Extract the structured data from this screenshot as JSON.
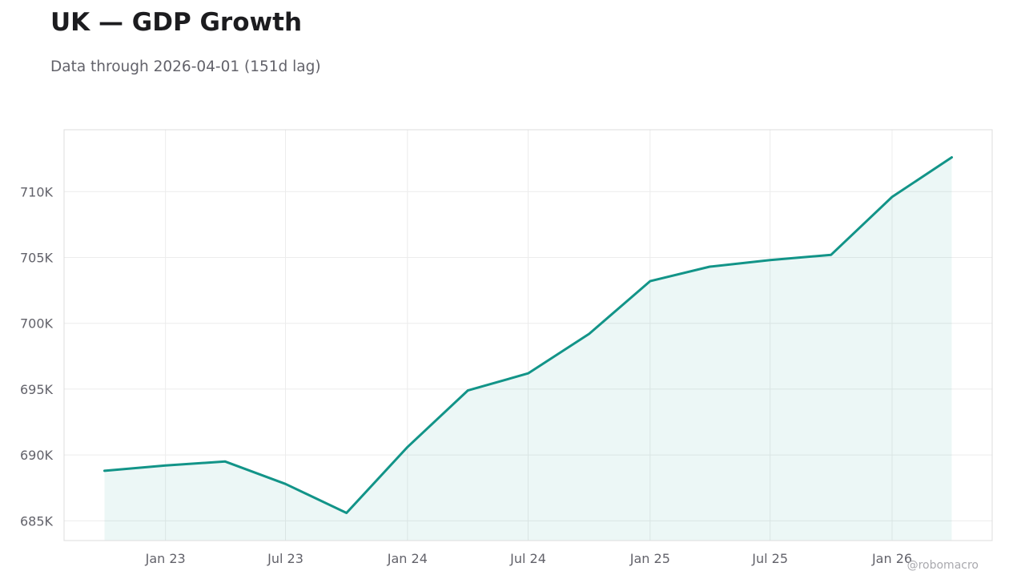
{
  "header": {
    "title": "UK — GDP Growth",
    "subtitle": "Data through 2026-04-01 (151d lag)"
  },
  "watermark": "@robomacro",
  "colors": {
    "line": "#129488",
    "fill": "#129488",
    "grid": "#ececec",
    "frame": "#dddddd",
    "tick_text": "#62626a"
  },
  "chart_data": {
    "type": "area",
    "x": [
      "2022-10-01",
      "2023-01-01",
      "2023-04-01",
      "2023-07-01",
      "2023-10-01",
      "2024-01-01",
      "2024-04-01",
      "2024-07-01",
      "2024-10-01",
      "2025-01-01",
      "2025-04-01",
      "2025-07-01",
      "2025-10-01",
      "2026-01-01",
      "2026-04-01"
    ],
    "series": [
      {
        "values": [
          688800,
          689200,
          689500,
          687800,
          685600,
          690600,
          694900,
          696200,
          699200,
          703200,
          704300,
          704800,
          705200,
          709600,
          712600
        ]
      }
    ],
    "xlim": [
      "2022-08-01",
      "2026-06-01"
    ],
    "ylim": [
      683500,
      714700
    ],
    "x_ticks": [
      {
        "date": "2023-01-01",
        "label": "Jan 23"
      },
      {
        "date": "2023-07-01",
        "label": "Jul 23"
      },
      {
        "date": "2024-01-01",
        "label": "Jan 24"
      },
      {
        "date": "2024-07-01",
        "label": "Jul 24"
      },
      {
        "date": "2025-01-01",
        "label": "Jan 25"
      },
      {
        "date": "2025-07-01",
        "label": "Jul 25"
      },
      {
        "date": "2026-01-01",
        "label": "Jan 26"
      }
    ],
    "y_ticks": [
      {
        "value": 685000,
        "label": "685K"
      },
      {
        "value": 690000,
        "label": "690K"
      },
      {
        "value": 695000,
        "label": "695K"
      },
      {
        "value": 700000,
        "label": "700K"
      },
      {
        "value": 705000,
        "label": "705K"
      },
      {
        "value": 710000,
        "label": "710K"
      }
    ],
    "grid": true,
    "legend": "none"
  }
}
